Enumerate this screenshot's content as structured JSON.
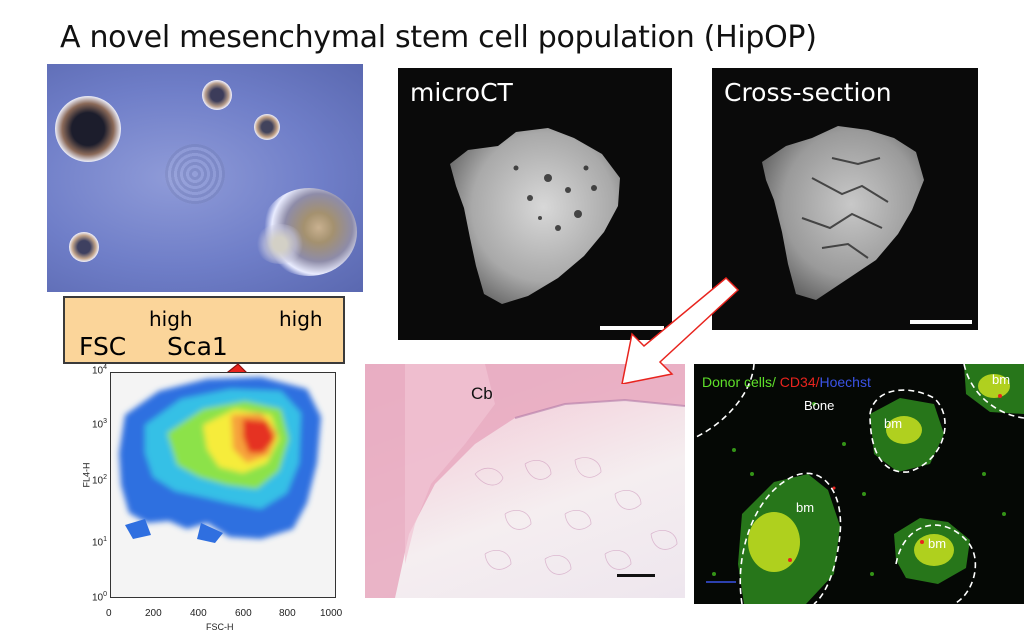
{
  "title": "A novel mesenchymal stem cell population (HipOP)",
  "microct": {
    "label": "microCT"
  },
  "crosssection": {
    "label": "Cross-section"
  },
  "fsc_box": {
    "fsc": "FSC",
    "fsc_sup": "high",
    "sca1": "Sca1",
    "sca1_sup": "high"
  },
  "flow_plot": {
    "ylabel": "FL4-H",
    "xlabel": "FSC-H",
    "x_ticks": [
      "0",
      "200",
      "400",
      "600",
      "800",
      "1000"
    ],
    "y_ticks": [
      "10",
      "10",
      "10",
      "10",
      "10"
    ],
    "y_exps": [
      "0",
      "1",
      "2",
      "3",
      "4"
    ]
  },
  "histology": {
    "label": "Cb"
  },
  "fluorescence": {
    "donor": "Donor cells/",
    "cd34": " CD34/",
    "hoechst": "Hoechst",
    "bone": "Bone",
    "bm_labels": [
      "bm",
      "bm",
      "bm",
      "bm"
    ],
    "colors": {
      "donor": "#5fe02a",
      "cd34": "#e8241e",
      "hoechst": "#3a53e6"
    }
  },
  "colors": {
    "arrow": "#e8241e",
    "fsc_box_bg": "#fbd59a"
  }
}
